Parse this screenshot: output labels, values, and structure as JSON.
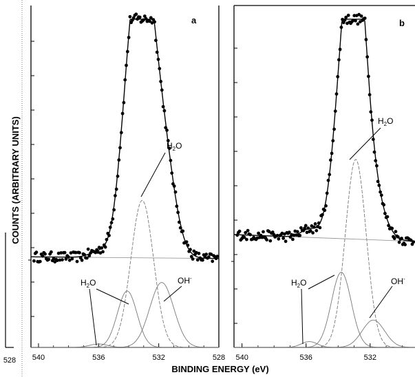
{
  "chart_data": {
    "type": "scatter",
    "xlabel": "BINDING ENERGY (eV)",
    "ylabel": "COUNTS (ARBITRARY UNITS)",
    "left_stub_tick": "528",
    "panels": [
      {
        "label": "a",
        "xlim": [
          540.5,
          528
        ],
        "xticks": [
          "540",
          "536",
          "532",
          "528"
        ],
        "xtick_values": [
          540,
          536,
          532,
          528
        ],
        "ylim": [
          0,
          1
        ],
        "annotations": [
          {
            "text": "H",
            "sub": "2",
            "tail": "O"
          },
          {
            "text": "H",
            "sub": "2",
            "tail": "O"
          },
          {
            "text": "OH",
            "sup": "-"
          }
        ],
        "components": [
          {
            "role": "upper water",
            "center": 533.1,
            "height": 0.43,
            "width": 0.75
          },
          {
            "role": "lower water",
            "center": 534.1,
            "height": 0.165,
            "width": 0.65
          },
          {
            "role": "hydroxyl",
            "center": 531.8,
            "height": 0.19,
            "width": 0.8
          },
          {
            "role": "minor water",
            "center": 536.0,
            "height": 0.01,
            "width": 0.6
          }
        ],
        "baseline": {
          "left": 0.265,
          "right": 0.26
        }
      },
      {
        "label": "b",
        "xlim": [
          540.5,
          529.2
        ],
        "xticks": [
          "540",
          "536",
          "532"
        ],
        "xtick_values": [
          540,
          536,
          532
        ],
        "ylim": [
          0,
          1
        ],
        "annotations": [
          {
            "text": "H",
            "sub": "2",
            "tail": "O"
          },
          {
            "text": "H",
            "sub": "2",
            "tail": "O"
          },
          {
            "text": "OH",
            "sup": "-"
          }
        ],
        "components": [
          {
            "role": "upper water",
            "center": 532.9,
            "height": 0.55,
            "width": 0.65
          },
          {
            "role": "lower water",
            "center": 533.8,
            "height": 0.22,
            "width": 0.62
          },
          {
            "role": "hydroxyl",
            "center": 531.8,
            "height": 0.08,
            "width": 0.7
          },
          {
            "role": "minor water",
            "center": 535.8,
            "height": 0.017,
            "width": 0.5
          }
        ],
        "baseline": {
          "left": 0.33,
          "right": 0.31
        }
      }
    ]
  }
}
